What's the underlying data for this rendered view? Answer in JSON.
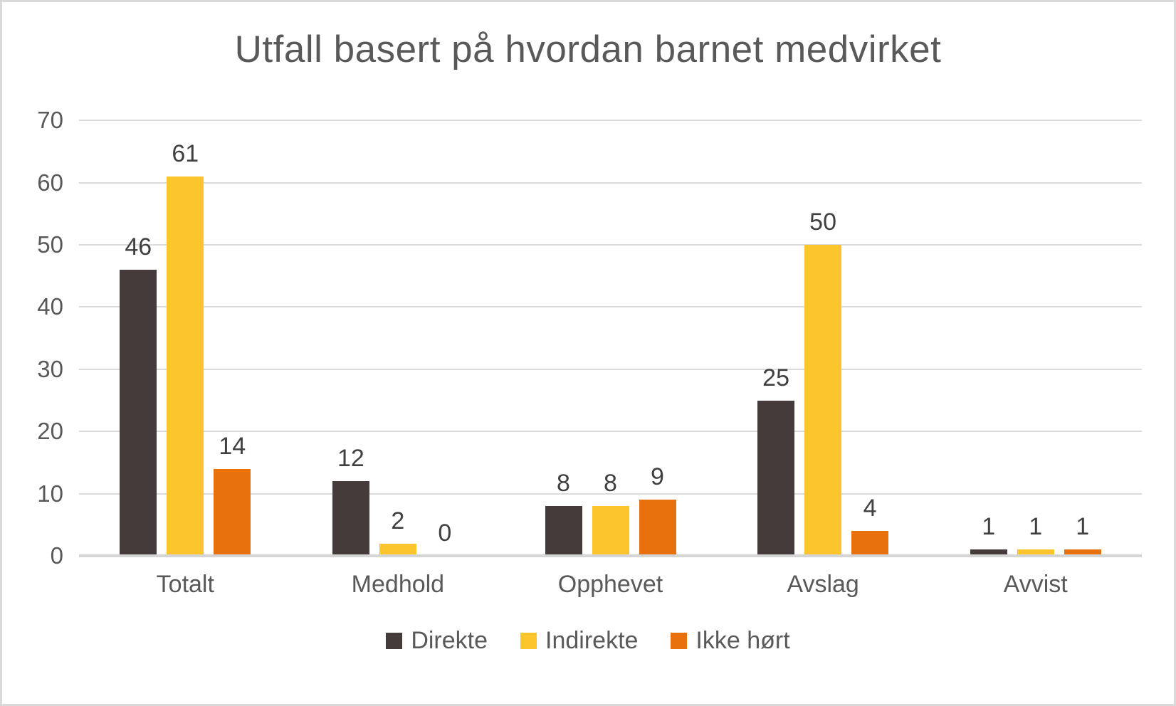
{
  "chart_data": {
    "type": "bar",
    "title": "Utfall basert på hvordan barnet medvirket",
    "categories": [
      "Totalt",
      "Medhold",
      "Opphevet",
      "Avslag",
      "Avvist"
    ],
    "series": [
      {
        "name": "Direkte",
        "color": "#453B3B",
        "values": [
          46,
          12,
          8,
          25,
          1
        ]
      },
      {
        "name": "Indirekte",
        "color": "#FCC52D",
        "values": [
          61,
          2,
          8,
          50,
          1
        ]
      },
      {
        "name": "Ikke hørt",
        "color": "#E8700D",
        "values": [
          14,
          0,
          9,
          4,
          1
        ]
      }
    ],
    "ylabel": "",
    "xlabel": "",
    "ylim": [
      0,
      70
    ],
    "yticks": [
      0,
      10,
      20,
      30,
      40,
      50,
      60,
      70
    ],
    "grid": true,
    "data_labels": true,
    "legend_position": "bottom",
    "colors": {
      "title_text": "#595959",
      "axis_text": "#595959",
      "data_label_text": "#404040",
      "gridline": "#DBDBDB",
      "axis_line": "#D5D5D5",
      "frame_border": "#D9D9D9",
      "background": "#FFFFFF"
    }
  }
}
